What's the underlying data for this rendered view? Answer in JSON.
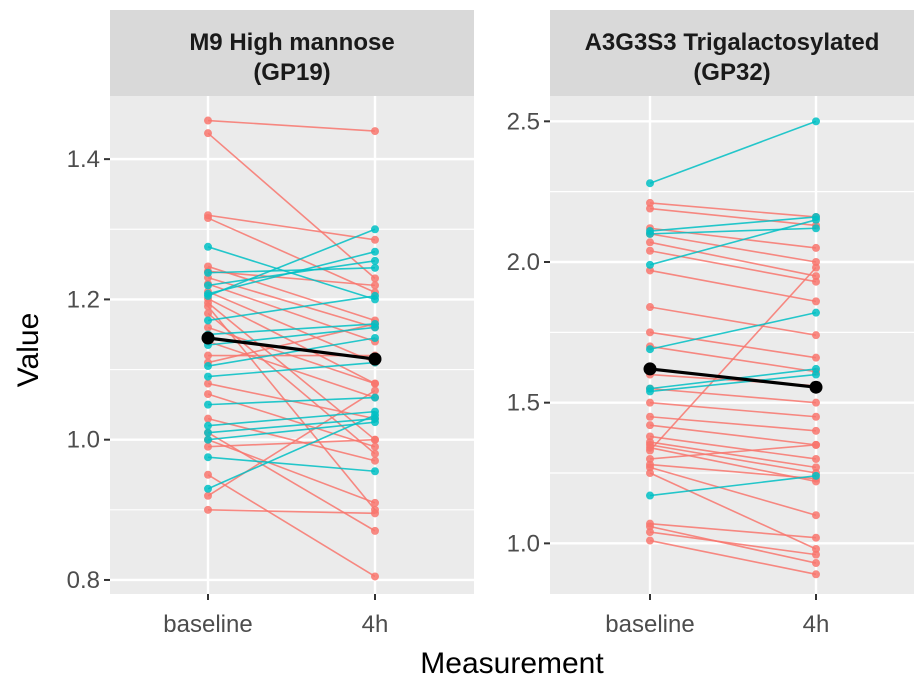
{
  "chart": {
    "xlabel": "Measurement",
    "ylabel": "Value"
  },
  "colors": {
    "red": "#F8766D",
    "teal": "#00BFC4",
    "mean": "#000000",
    "panel_bg": "#EBEBEB",
    "strip_bg": "#D9D9D9",
    "grid": "#FFFFFF"
  },
  "chart_data": [
    {
      "type": "line",
      "facet_title_line1": "M9 High mannose",
      "facet_title_line2": "(GP19)",
      "categories": [
        "baseline",
        "4h"
      ],
      "ylim": [
        0.78,
        1.49
      ],
      "yticks": [
        0.8,
        1.0,
        1.2,
        1.4
      ],
      "ytick_labels": [
        "0.8",
        "1.0",
        "1.2",
        "1.4"
      ],
      "grid": true,
      "mean": {
        "baseline": 1.145,
        "4h": 1.115
      },
      "red_pairs": [
        [
          1.455,
          1.44
        ],
        [
          1.437,
          1.23
        ],
        [
          1.32,
          1.285
        ],
        [
          1.316,
          1.21
        ],
        [
          1.247,
          1.17
        ],
        [
          1.24,
          1.22
        ],
        [
          1.231,
          1.16
        ],
        [
          1.222,
          1.14
        ],
        [
          1.211,
          1.11
        ],
        [
          1.201,
          1.08
        ],
        [
          1.195,
          1.0
        ],
        [
          1.19,
          0.9
        ],
        [
          1.18,
          0.98
        ],
        [
          1.16,
          1.08
        ],
        [
          1.14,
          1.06
        ],
        [
          1.12,
          1.12
        ],
        [
          1.11,
          1.165
        ],
        [
          1.08,
          1.03
        ],
        [
          1.065,
          0.99
        ],
        [
          1.03,
          0.97
        ],
        [
          1.01,
          0.87
        ],
        [
          1.0,
          0.91
        ],
        [
          0.99,
          1.0
        ],
        [
          0.95,
          0.805
        ],
        [
          0.92,
          1.07
        ],
        [
          0.9,
          0.895
        ]
      ],
      "teal_pairs": [
        [
          1.275,
          1.2
        ],
        [
          1.238,
          1.245
        ],
        [
          1.22,
          1.255
        ],
        [
          1.208,
          1.268
        ],
        [
          1.205,
          1.3
        ],
        [
          1.17,
          1.205
        ],
        [
          1.15,
          1.165
        ],
        [
          1.135,
          1.16
        ],
        [
          1.105,
          1.145
        ],
        [
          1.09,
          1.11
        ],
        [
          1.05,
          1.06
        ],
        [
          1.02,
          1.04
        ],
        [
          1.01,
          1.03
        ],
        [
          1.0,
          1.025
        ],
        [
          0.975,
          0.955
        ],
        [
          0.93,
          1.035
        ]
      ]
    },
    {
      "type": "line",
      "facet_title_line1": "A3G3S3 Trigalactosylated",
      "facet_title_line2": "(GP32)",
      "categories": [
        "baseline",
        "4h"
      ],
      "ylim": [
        0.82,
        2.59
      ],
      "yticks": [
        1.0,
        1.5,
        2.0,
        2.5
      ],
      "ytick_labels": [
        "1.0",
        "1.5",
        "2.0",
        "2.5"
      ],
      "grid": true,
      "mean": {
        "baseline": 1.62,
        "4h": 1.555
      },
      "red_pairs": [
        [
          2.21,
          2.16
        ],
        [
          2.19,
          2.13
        ],
        [
          2.12,
          2.05
        ],
        [
          2.1,
          2.0
        ],
        [
          2.07,
          1.95
        ],
        [
          2.04,
          1.93
        ],
        [
          1.97,
          1.86
        ],
        [
          1.84,
          1.74
        ],
        [
          1.75,
          1.66
        ],
        [
          1.7,
          1.61
        ],
        [
          1.6,
          1.56
        ],
        [
          1.55,
          1.5
        ],
        [
          1.5,
          1.45
        ],
        [
          1.45,
          1.4
        ],
        [
          1.42,
          1.35
        ],
        [
          1.38,
          1.3
        ],
        [
          1.36,
          1.27
        ],
        [
          1.35,
          1.25
        ],
        [
          1.34,
          1.22
        ],
        [
          1.33,
          1.98
        ],
        [
          1.3,
          1.35
        ],
        [
          1.28,
          1.23
        ],
        [
          1.27,
          1.1
        ],
        [
          1.25,
          0.98
        ],
        [
          1.07,
          1.02
        ],
        [
          1.06,
          0.93
        ],
        [
          1.04,
          0.96
        ],
        [
          1.01,
          0.89
        ]
      ],
      "teal_pairs": [
        [
          2.28,
          2.5
        ],
        [
          2.11,
          2.16
        ],
        [
          2.1,
          2.12
        ],
        [
          1.99,
          2.15
        ],
        [
          1.69,
          1.82
        ],
        [
          1.55,
          1.62
        ],
        [
          1.54,
          1.6
        ],
        [
          1.17,
          1.24
        ]
      ]
    }
  ]
}
